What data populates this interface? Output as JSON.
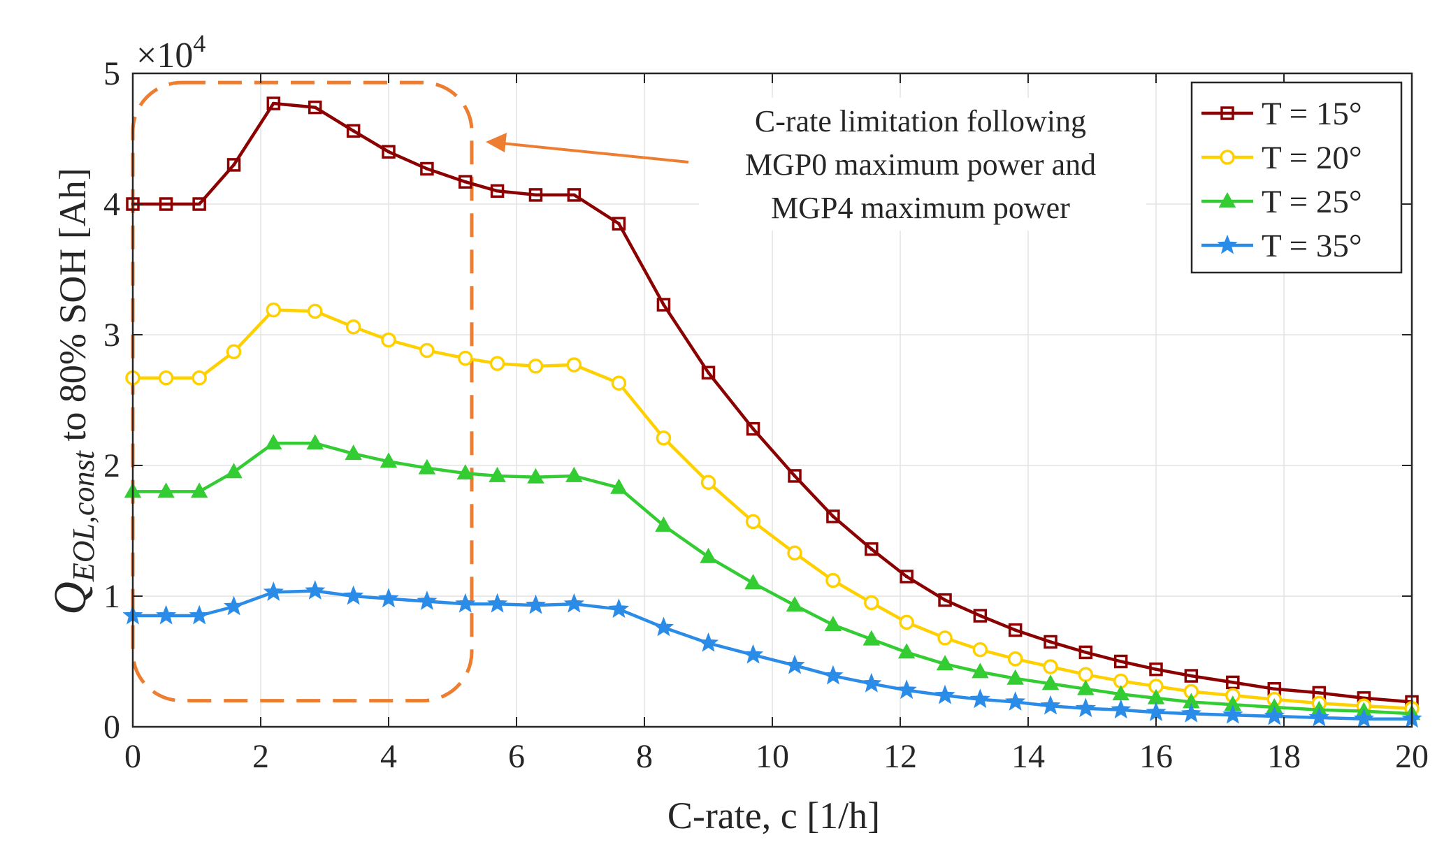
{
  "chart_data": {
    "type": "line",
    "title": "",
    "xlabel": "C-rate,  c [1/h]",
    "ylabel_main": "Q",
    "ylabel_sub": "EOL,const",
    "ylabel_suffix": " to 80% SOH [Ah]",
    "y_multiplier": "×10",
    "y_multiplier_exp": "4",
    "xlim": [
      0,
      20
    ],
    "ylim": [
      0,
      5
    ],
    "x_ticks": [
      "0",
      "2",
      "4",
      "6",
      "8",
      "10",
      "12",
      "14",
      "16",
      "18",
      "20"
    ],
    "y_ticks": [
      "0",
      "1",
      "2",
      "3",
      "4",
      "5"
    ],
    "grid": true,
    "legend_position": "top-right",
    "annotation": {
      "lines": [
        "C-rate limitation following",
        "MGP0 maximum power and",
        "MGP4 maximum power"
      ],
      "color": "#ED7D31"
    },
    "x": [
      0,
      0.52,
      1.04,
      1.58,
      2.2,
      2.85,
      3.45,
      4.0,
      4.6,
      5.2,
      5.7,
      6.3,
      6.9,
      7.6,
      8.3,
      9.0,
      9.7,
      10.35,
      10.95,
      11.55,
      12.1,
      12.7,
      13.25,
      13.8,
      14.35,
      14.9,
      15.45,
      16.0,
      16.55,
      17.2,
      17.85,
      18.55,
      19.25,
      20.0
    ],
    "series": [
      {
        "name": "T = 15°",
        "color": "#8B0000",
        "marker": "square",
        "values": [
          4.0,
          4.0,
          4.0,
          4.3,
          4.77,
          4.74,
          4.56,
          4.4,
          4.27,
          4.17,
          4.1,
          4.07,
          4.07,
          3.85,
          3.23,
          2.71,
          2.28,
          1.92,
          1.61,
          1.36,
          1.15,
          0.97,
          0.85,
          0.74,
          0.65,
          0.57,
          0.5,
          0.44,
          0.39,
          0.34,
          0.29,
          0.26,
          0.22,
          0.19
        ]
      },
      {
        "name": "T = 20°",
        "color": "#FFD000",
        "marker": "circle",
        "values": [
          2.67,
          2.67,
          2.67,
          2.87,
          3.19,
          3.18,
          3.06,
          2.96,
          2.88,
          2.82,
          2.78,
          2.76,
          2.77,
          2.63,
          2.21,
          1.87,
          1.57,
          1.33,
          1.12,
          0.95,
          0.8,
          0.68,
          0.59,
          0.52,
          0.46,
          0.4,
          0.35,
          0.31,
          0.27,
          0.24,
          0.21,
          0.18,
          0.16,
          0.14
        ]
      },
      {
        "name": "T = 25°",
        "color": "#33CC33",
        "marker": "triangle",
        "values": [
          1.8,
          1.8,
          1.8,
          1.95,
          2.17,
          2.17,
          2.09,
          2.03,
          1.98,
          1.94,
          1.92,
          1.91,
          1.92,
          1.83,
          1.54,
          1.3,
          1.1,
          0.93,
          0.78,
          0.67,
          0.57,
          0.48,
          0.42,
          0.37,
          0.33,
          0.29,
          0.25,
          0.22,
          0.19,
          0.17,
          0.15,
          0.13,
          0.12,
          0.1
        ]
      },
      {
        "name": "T = 35°",
        "color": "#2B8CE8",
        "marker": "star",
        "values": [
          0.85,
          0.85,
          0.85,
          0.92,
          1.03,
          1.04,
          1.0,
          0.98,
          0.96,
          0.94,
          0.94,
          0.93,
          0.94,
          0.9,
          0.76,
          0.64,
          0.55,
          0.47,
          0.39,
          0.33,
          0.28,
          0.24,
          0.21,
          0.19,
          0.16,
          0.14,
          0.13,
          0.11,
          0.1,
          0.09,
          0.08,
          0.07,
          0.06,
          0.06
        ]
      }
    ]
  }
}
